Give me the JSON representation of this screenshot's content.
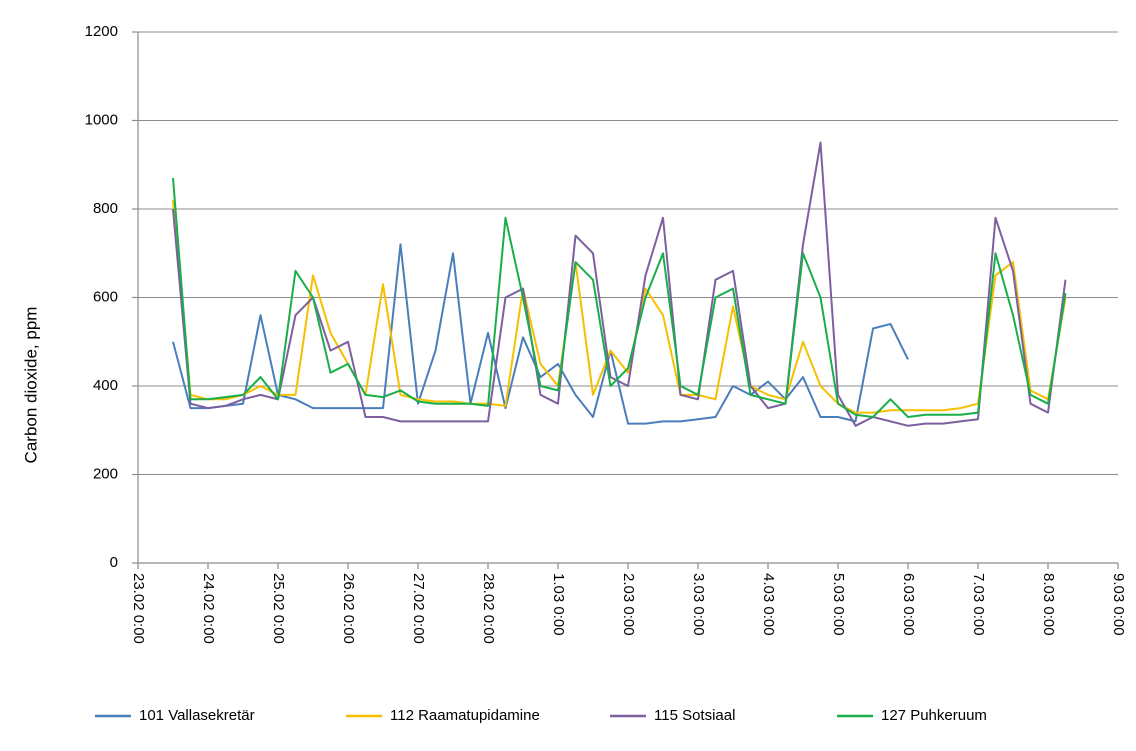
{
  "chart_data": {
    "type": "line",
    "y_label": "Carbon dioxide, ppm",
    "x": [
      0.5,
      0.75,
      1,
      1.25,
      1.5,
      1.75,
      2,
      2.25,
      2.5,
      2.75,
      3,
      3.25,
      3.5,
      3.75,
      4,
      4.25,
      4.5,
      4.75,
      5,
      5.25,
      5.5,
      5.75,
      6,
      6.25,
      6.5,
      6.75,
      7,
      7.25,
      7.5,
      7.75,
      8,
      8.25,
      8.5,
      8.75,
      9,
      9.25,
      9.5,
      9.75,
      10,
      10.25,
      10.5,
      10.75,
      11,
      11.25,
      11.5,
      11.75,
      12,
      12.25,
      12.5,
      12.75,
      13,
      13.25,
      13.5
    ],
    "xlim": [
      0,
      14
    ],
    "xticks": [
      {
        "value": 0,
        "label": "23.02 0:00"
      },
      {
        "value": 1,
        "label": "24.02 0:00"
      },
      {
        "value": 2,
        "label": "25.02 0:00"
      },
      {
        "value": 3,
        "label": "26.02 0:00"
      },
      {
        "value": 4,
        "label": "27.02 0:00"
      },
      {
        "value": 5,
        "label": "28.02 0:00"
      },
      {
        "value": 6,
        "label": "1.03 0:00"
      },
      {
        "value": 7,
        "label": "2.03 0:00"
      },
      {
        "value": 8,
        "label": "3.03 0:00"
      },
      {
        "value": 9,
        "label": "4.03 0:00"
      },
      {
        "value": 10,
        "label": "5.03 0:00"
      },
      {
        "value": 11,
        "label": "6.03 0:00"
      },
      {
        "value": 12,
        "label": "7.03 0:00"
      },
      {
        "value": 13,
        "label": "8.03 0:00"
      },
      {
        "value": 14,
        "label": "9.03 0:00"
      }
    ],
    "ylim": [
      0,
      1200
    ],
    "yticks": [
      0,
      200,
      400,
      600,
      800,
      1000,
      1200
    ],
    "grid": true,
    "legend": "bottom",
    "series": [
      {
        "name": "101 Vallasekretär",
        "color": "#4a7ebb",
        "values": [
          500,
          350,
          350,
          355,
          360,
          560,
          380,
          370,
          350,
          350,
          350,
          350,
          350,
          720,
          360,
          480,
          700,
          360,
          520,
          350,
          510,
          420,
          450,
          380,
          330,
          480,
          315,
          315,
          320,
          320,
          325,
          330,
          400,
          380,
          410,
          370,
          420,
          330,
          330,
          320,
          530,
          540,
          460,
          null,
          null,
          null,
          null,
          null,
          null,
          null,
          null,
          null,
          null
        ]
      },
      {
        "name": "112 Raamatupidamine",
        "color": "#f5c000",
        "values": [
          820,
          380,
          370,
          370,
          380,
          400,
          380,
          380,
          650,
          520,
          450,
          380,
          630,
          380,
          370,
          365,
          365,
          360,
          360,
          355,
          620,
          450,
          400,
          680,
          380,
          480,
          430,
          620,
          560,
          380,
          380,
          370,
          580,
          400,
          380,
          370,
          500,
          400,
          360,
          340,
          340,
          345,
          345,
          345,
          345,
          350,
          360,
          650,
          680,
          390,
          370,
          600,
          null
        ]
      },
      {
        "name": "115 Sotsiaal",
        "color": "#7d5fa0",
        "values": [
          800,
          360,
          350,
          355,
          370,
          380,
          370,
          560,
          600,
          480,
          500,
          330,
          330,
          320,
          320,
          320,
          320,
          320,
          320,
          600,
          620,
          380,
          360,
          740,
          700,
          420,
          400,
          650,
          780,
          380,
          370,
          640,
          660,
          400,
          350,
          360,
          720,
          950,
          380,
          310,
          330,
          320,
          310,
          315,
          315,
          320,
          325,
          780,
          660,
          360,
          340,
          640,
          null
        ]
      },
      {
        "name": "127 Puhkeruum",
        "color": "#1aae4a",
        "values": [
          870,
          370,
          370,
          375,
          380,
          420,
          370,
          660,
          600,
          430,
          450,
          380,
          375,
          390,
          365,
          360,
          360,
          360,
          355,
          780,
          600,
          400,
          390,
          680,
          640,
          400,
          440,
          600,
          700,
          400,
          380,
          600,
          620,
          380,
          370,
          360,
          700,
          600,
          360,
          335,
          330,
          370,
          330,
          335,
          335,
          335,
          340,
          700,
          560,
          380,
          360,
          610,
          null
        ]
      }
    ]
  }
}
